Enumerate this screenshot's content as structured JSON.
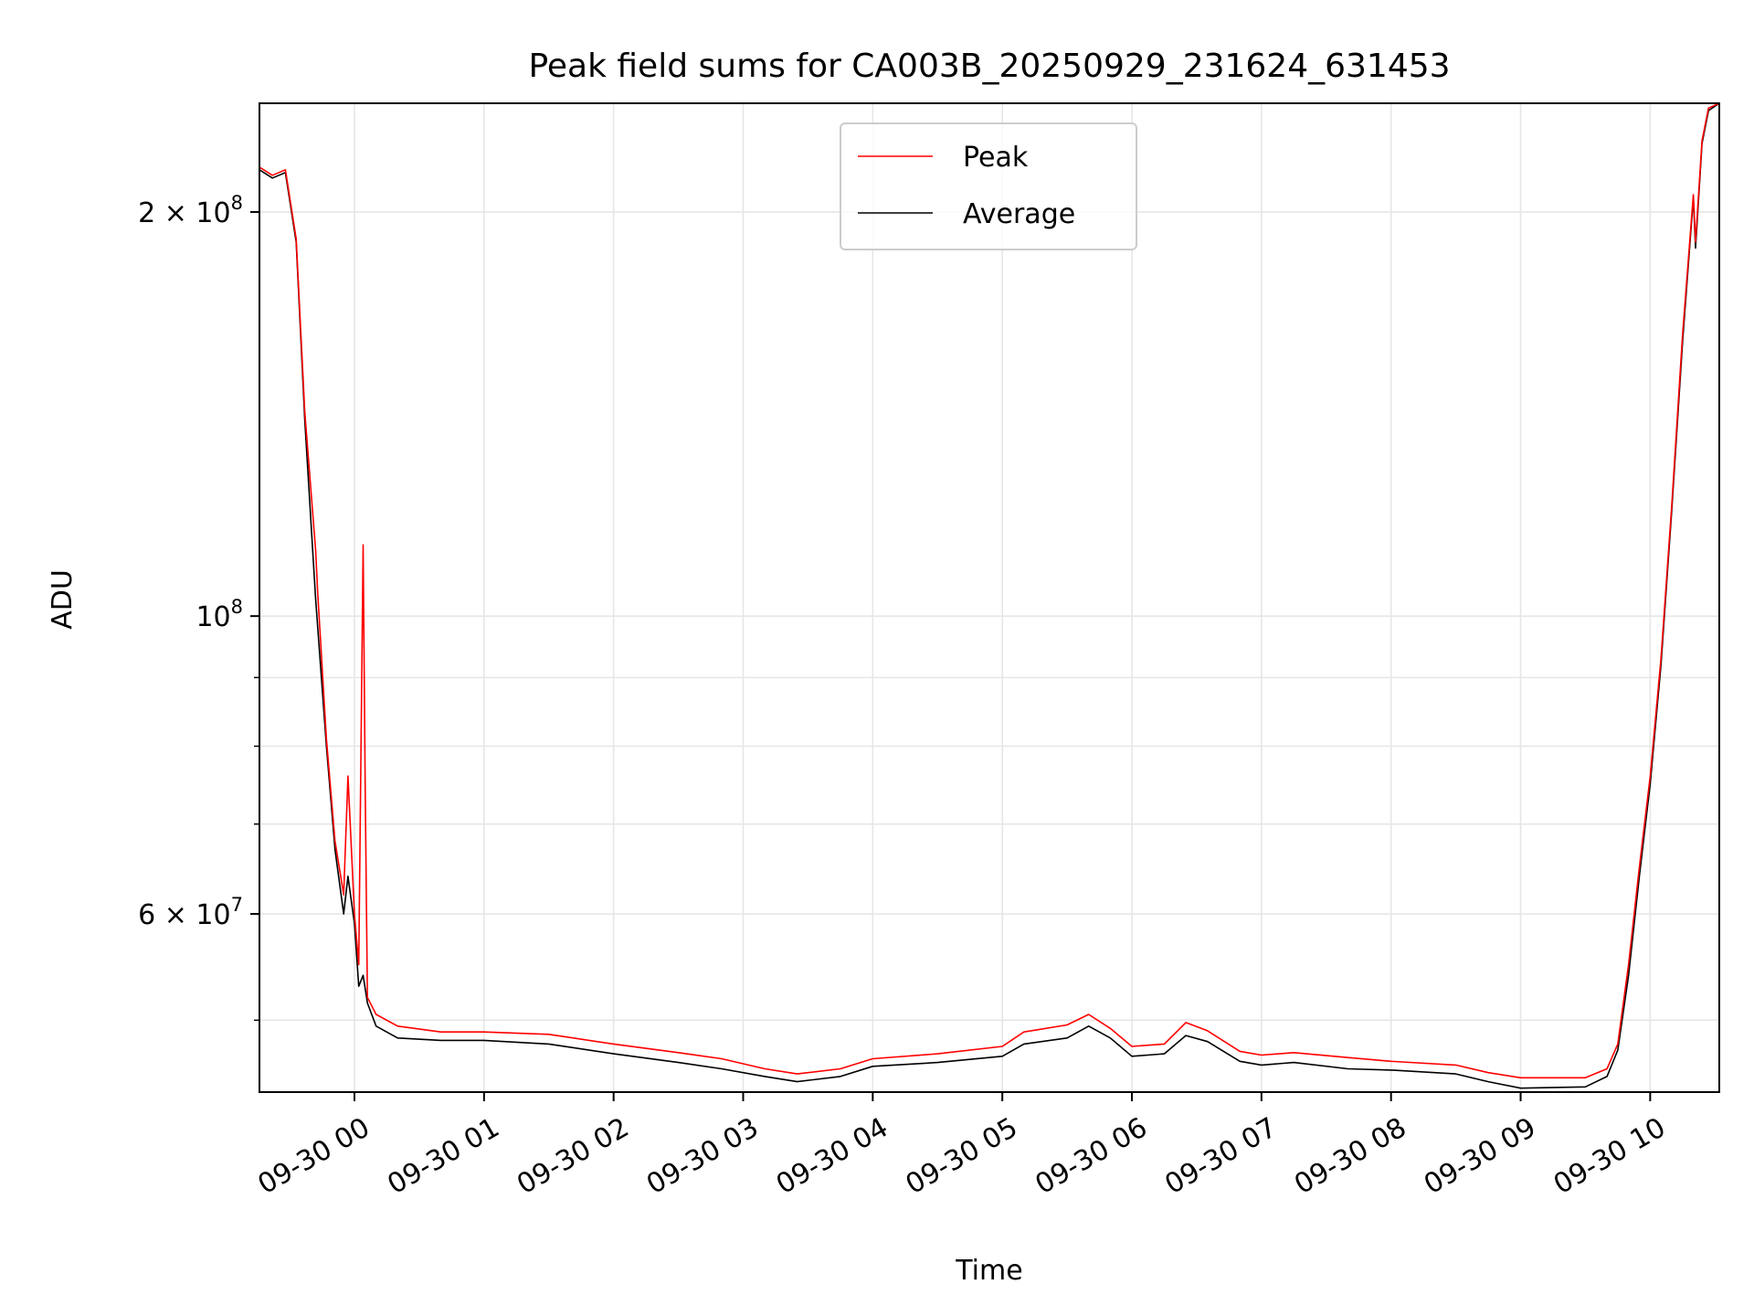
{
  "chart_data": {
    "type": "line",
    "title": "Peak field sums for CA003B_20250929_231624_631453",
    "xlabel": "Time",
    "ylabel": "ADU",
    "yscale": "log",
    "xlim": [
      "2025-09-29 23:16",
      "2025-09-30 10:32"
    ],
    "ylim": [
      44200000,
      241000000
    ],
    "grid": true,
    "legend": "upper center",
    "x_ticks": [
      {
        "t": "2025-09-30 00:00",
        "label": "09-30 00"
      },
      {
        "t": "2025-09-30 01:00",
        "label": "09-30 01"
      },
      {
        "t": "2025-09-30 02:00",
        "label": "09-30 02"
      },
      {
        "t": "2025-09-30 03:00",
        "label": "09-30 03"
      },
      {
        "t": "2025-09-30 04:00",
        "label": "09-30 04"
      },
      {
        "t": "2025-09-30 05:00",
        "label": "09-30 05"
      },
      {
        "t": "2025-09-30 06:00",
        "label": "09-30 06"
      },
      {
        "t": "2025-09-30 07:00",
        "label": "09-30 07"
      },
      {
        "t": "2025-09-30 08:00",
        "label": "09-30 08"
      },
      {
        "t": "2025-09-30 09:00",
        "label": "09-30 09"
      },
      {
        "t": "2025-09-30 10:00",
        "label": "09-30 10"
      }
    ],
    "y_major_ticks": [
      {
        "value": 60000000,
        "mant": "6 × 10",
        "exp": "7"
      },
      {
        "value": 100000000,
        "mant": "10",
        "exp": "8"
      },
      {
        "value": 200000000,
        "mant": "2 × 10",
        "exp": "8"
      }
    ],
    "y_minor_ticks": [
      50000000,
      70000000,
      80000000,
      90000000
    ],
    "series": [
      {
        "name": "Average",
        "color": "#000000",
        "points": [
          [
            "2025-09-29 23:16",
            215000000
          ],
          [
            "2025-09-29 23:22",
            212000000
          ],
          [
            "2025-09-29 23:28",
            214000000
          ],
          [
            "2025-09-29 23:33",
            190000000
          ],
          [
            "2025-09-29 23:37",
            140000000
          ],
          [
            "2025-09-29 23:42",
            103000000
          ],
          [
            "2025-09-29 23:47",
            80000000
          ],
          [
            "2025-09-29 23:51",
            67000000
          ],
          [
            "2025-09-29 23:55",
            60000000
          ],
          [
            "2025-09-29 23:57",
            64000000
          ],
          [
            "2025-09-30 00:00",
            59000000
          ],
          [
            "2025-09-30 00:02",
            53000000
          ],
          [
            "2025-09-30 00:04",
            54000000
          ],
          [
            "2025-09-30 00:06",
            51500000
          ],
          [
            "2025-09-30 00:10",
            49500000
          ],
          [
            "2025-09-30 00:20",
            48500000
          ],
          [
            "2025-09-30 00:40",
            48300000
          ],
          [
            "2025-09-30 01:00",
            48300000
          ],
          [
            "2025-09-30 01:30",
            48000000
          ],
          [
            "2025-09-30 02:00",
            47200000
          ],
          [
            "2025-09-30 02:30",
            46500000
          ],
          [
            "2025-09-30 02:50",
            46000000
          ],
          [
            "2025-09-30 03:10",
            45400000
          ],
          [
            "2025-09-30 03:25",
            45000000
          ],
          [
            "2025-09-30 03:45",
            45400000
          ],
          [
            "2025-09-30 04:00",
            46200000
          ],
          [
            "2025-09-30 04:30",
            46500000
          ],
          [
            "2025-09-30 05:00",
            47000000
          ],
          [
            "2025-09-30 05:10",
            48000000
          ],
          [
            "2025-09-30 05:30",
            48500000
          ],
          [
            "2025-09-30 05:40",
            49500000
          ],
          [
            "2025-09-30 05:50",
            48500000
          ],
          [
            "2025-09-30 06:00",
            47000000
          ],
          [
            "2025-09-30 06:15",
            47200000
          ],
          [
            "2025-09-30 06:25",
            48700000
          ],
          [
            "2025-09-30 06:35",
            48200000
          ],
          [
            "2025-09-30 06:50",
            46600000
          ],
          [
            "2025-09-30 07:00",
            46300000
          ],
          [
            "2025-09-30 07:15",
            46500000
          ],
          [
            "2025-09-30 07:40",
            46000000
          ],
          [
            "2025-09-30 08:00",
            45900000
          ],
          [
            "2025-09-30 08:30",
            45600000
          ],
          [
            "2025-09-30 08:45",
            45000000
          ],
          [
            "2025-09-30 09:00",
            44500000
          ],
          [
            "2025-09-30 09:30",
            44600000
          ],
          [
            "2025-09-30 09:40",
            45400000
          ],
          [
            "2025-09-30 09:45",
            47500000
          ],
          [
            "2025-09-30 09:50",
            54000000
          ],
          [
            "2025-09-30 09:55",
            64000000
          ],
          [
            "2025-09-30 10:00",
            75000000
          ],
          [
            "2025-09-30 10:05",
            92000000
          ],
          [
            "2025-09-30 10:10",
            120000000
          ],
          [
            "2025-09-30 10:15",
            160000000
          ],
          [
            "2025-09-30 10:20",
            205000000
          ],
          [
            "2025-09-30 10:21",
            188000000
          ],
          [
            "2025-09-30 10:24",
            225000000
          ],
          [
            "2025-09-30 10:27",
            238000000
          ],
          [
            "2025-09-30 10:32",
            241000000
          ]
        ]
      },
      {
        "name": "Peak",
        "color": "#ff0000",
        "points": [
          [
            "2025-09-29 23:16",
            216000000
          ],
          [
            "2025-09-29 23:22",
            213000000
          ],
          [
            "2025-09-29 23:28",
            215000000
          ],
          [
            "2025-09-29 23:33",
            191000000
          ],
          [
            "2025-09-29 23:37",
            142000000
          ],
          [
            "2025-09-29 23:42",
            112000000
          ],
          [
            "2025-09-29 23:43",
            104000000
          ],
          [
            "2025-09-29 23:47",
            81000000
          ],
          [
            "2025-09-29 23:51",
            68000000
          ],
          [
            "2025-09-29 23:55",
            62000000
          ],
          [
            "2025-09-29 23:57",
            76000000
          ],
          [
            "2025-09-30 00:00",
            60000000
          ],
          [
            "2025-09-30 00:02",
            55000000
          ],
          [
            "2025-09-30 00:04",
            113000000
          ],
          [
            "2025-09-30 00:05",
            74000000
          ],
          [
            "2025-09-30 00:06",
            52000000
          ],
          [
            "2025-09-30 00:10",
            50500000
          ],
          [
            "2025-09-30 00:20",
            49500000
          ],
          [
            "2025-09-30 00:40",
            49000000
          ],
          [
            "2025-09-30 01:00",
            49000000
          ],
          [
            "2025-09-30 01:30",
            48800000
          ],
          [
            "2025-09-30 02:00",
            48000000
          ],
          [
            "2025-09-30 02:30",
            47300000
          ],
          [
            "2025-09-30 02:50",
            46800000
          ],
          [
            "2025-09-30 03:10",
            46000000
          ],
          [
            "2025-09-30 03:25",
            45600000
          ],
          [
            "2025-09-30 03:45",
            46000000
          ],
          [
            "2025-09-30 04:00",
            46800000
          ],
          [
            "2025-09-30 04:30",
            47200000
          ],
          [
            "2025-09-30 05:00",
            47800000
          ],
          [
            "2025-09-30 05:10",
            49000000
          ],
          [
            "2025-09-30 05:30",
            49600000
          ],
          [
            "2025-09-30 05:40",
            50500000
          ],
          [
            "2025-09-30 05:50",
            49300000
          ],
          [
            "2025-09-30 06:00",
            47800000
          ],
          [
            "2025-09-30 06:15",
            48000000
          ],
          [
            "2025-09-30 06:25",
            49800000
          ],
          [
            "2025-09-30 06:35",
            49100000
          ],
          [
            "2025-09-30 06:50",
            47400000
          ],
          [
            "2025-09-30 07:00",
            47100000
          ],
          [
            "2025-09-30 07:15",
            47300000
          ],
          [
            "2025-09-30 07:40",
            46900000
          ],
          [
            "2025-09-30 08:00",
            46600000
          ],
          [
            "2025-09-30 08:30",
            46300000
          ],
          [
            "2025-09-30 08:45",
            45700000
          ],
          [
            "2025-09-30 09:00",
            45300000
          ],
          [
            "2025-09-30 09:30",
            45300000
          ],
          [
            "2025-09-30 09:40",
            46000000
          ],
          [
            "2025-09-30 09:45",
            48000000
          ],
          [
            "2025-09-30 09:50",
            55000000
          ],
          [
            "2025-09-30 09:55",
            65000000
          ],
          [
            "2025-09-30 10:00",
            76000000
          ],
          [
            "2025-09-30 10:05",
            93000000
          ],
          [
            "2025-09-30 10:10",
            121000000
          ],
          [
            "2025-09-30 10:15",
            162000000
          ],
          [
            "2025-09-30 10:20",
            206000000
          ],
          [
            "2025-09-30 10:21",
            190000000
          ],
          [
            "2025-09-30 10:24",
            226000000
          ],
          [
            "2025-09-30 10:27",
            239000000
          ],
          [
            "2025-09-30 10:32",
            241000000
          ]
        ]
      }
    ]
  }
}
